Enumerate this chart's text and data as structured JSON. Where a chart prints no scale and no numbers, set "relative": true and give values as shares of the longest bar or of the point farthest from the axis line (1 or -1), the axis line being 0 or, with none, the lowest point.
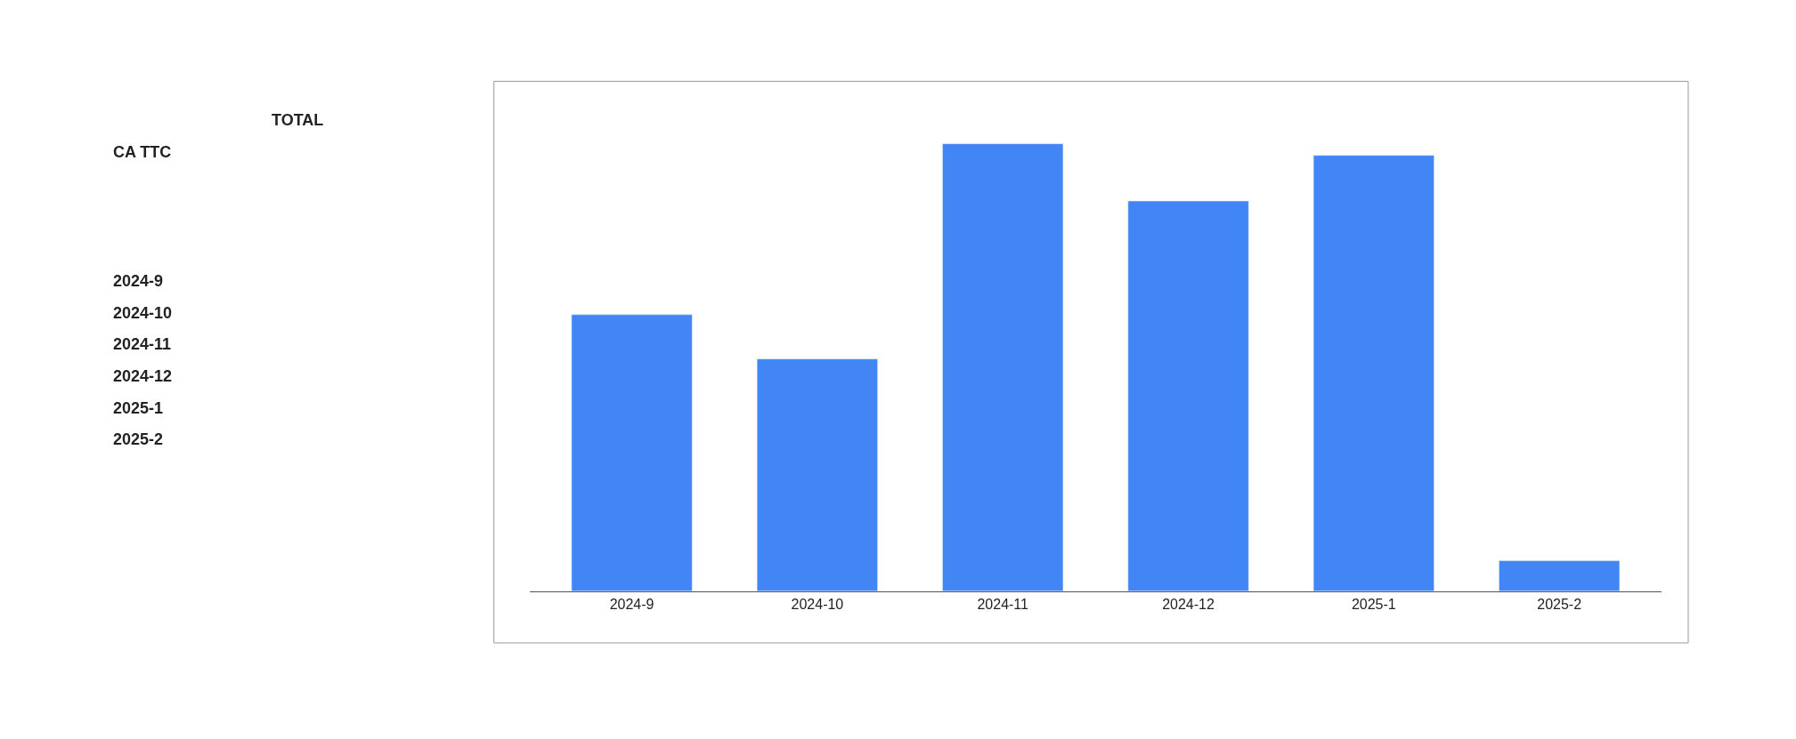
{
  "chart_data": {
    "type": "bar",
    "relative": true,
    "categories": [
      "2024-9",
      "2024-10",
      "2024-11",
      "2024-12",
      "2025-1",
      "2025-2"
    ],
    "values": [
      0.618,
      0.519,
      1,
      0.872,
      0.974,
      0.068
    ],
    "color": "#4285f4",
    "annotations": [
      "TOTAL",
      "CA TTC"
    ]
  }
}
